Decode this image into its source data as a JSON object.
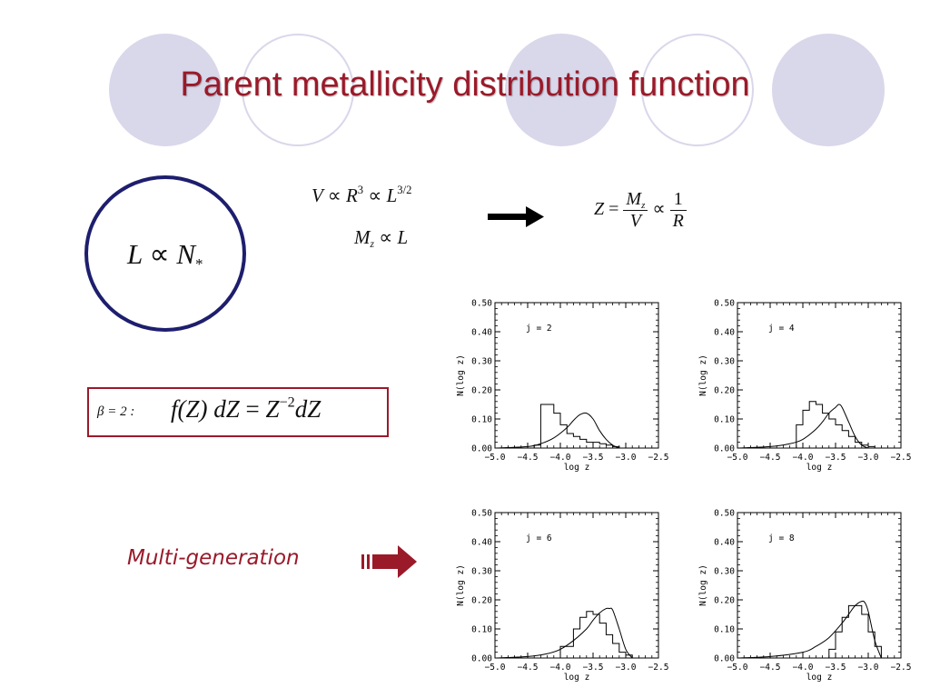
{
  "slide": {
    "title": "Parent metallicity distribution function",
    "colors": {
      "title": "#9a1a2a",
      "circle_border": "#1e1e6e",
      "box_border": "#9a1a2a",
      "decoration": "#d9d7ea"
    }
  },
  "equations": {
    "circle": {
      "lhs": "L",
      "op": "∝",
      "rhs": "N",
      "rhs_sub": "*"
    },
    "volume": {
      "v": "V",
      "op1": "∝",
      "r": "R",
      "r_exp": "3",
      "op2": "∝",
      "l": "L",
      "l_exp": "3/2"
    },
    "mass": {
      "m": "M",
      "m_sub": "z",
      "op": "∝",
      "l": "L"
    },
    "metallicity": {
      "z": "Z",
      "eq": "=",
      "num": "M",
      "num_sub": "z",
      "den": "V",
      "op": "∝",
      "num2": "1",
      "den2": "R"
    },
    "imf": {
      "prefix": "β = 2 :",
      "expr": "f(Z) dZ",
      "eq": "=",
      "rhs": "Z",
      "rhs_exp": "−2",
      "tail": "dZ"
    }
  },
  "arrows": {
    "right_arrow_icon": "right-arrow-icon",
    "multi_gen_arrow_icon": "multi-generation-arrow-icon"
  },
  "multi_generation": {
    "label": "Multi-generation"
  },
  "chart_data": [
    {
      "type": "line",
      "annotation": "j = 2",
      "xlabel": "log z",
      "ylabel": "N(log z)",
      "xlim": [
        -5.0,
        -2.5
      ],
      "ylim": [
        0.0,
        0.5
      ],
      "xticks": [
        "−5.0",
        "−4.5",
        "−4.0",
        "−3.5",
        "−3.0",
        "−2.5"
      ],
      "yticks": [
        "0.00",
        "0.10",
        "0.20",
        "0.30",
        "0.40",
        "0.50"
      ],
      "series": [
        {
          "style": "step",
          "x": [
            -5.0,
            -4.4,
            -4.3,
            -4.1,
            -4.0,
            -3.9,
            -3.8,
            -3.7,
            -3.6,
            -3.5,
            -3.4,
            -3.3,
            -3.2,
            -3.1,
            -2.5
          ],
          "y": [
            0.0,
            0.01,
            0.15,
            0.12,
            0.08,
            0.05,
            0.04,
            0.03,
            0.02,
            0.02,
            0.015,
            0.01,
            0.005,
            0.0,
            0.0
          ]
        },
        {
          "style": "smooth",
          "x": [
            -5.0,
            -4.5,
            -4.3,
            -4.1,
            -3.9,
            -3.8,
            -3.7,
            -3.6,
            -3.5,
            -3.4,
            -3.3,
            -3.2,
            -3.1
          ],
          "y": [
            0.0,
            0.005,
            0.015,
            0.035,
            0.07,
            0.095,
            0.115,
            0.12,
            0.1,
            0.06,
            0.03,
            0.01,
            0.0
          ]
        }
      ]
    },
    {
      "type": "line",
      "annotation": "j = 4",
      "xlabel": "log z",
      "ylabel": "N(log z)",
      "xlim": [
        -5.0,
        -2.5
      ],
      "ylim": [
        0.0,
        0.5
      ],
      "xticks": [
        "−5.0",
        "−4.5",
        "−4.0",
        "−3.5",
        "−3.0",
        "−2.5"
      ],
      "yticks": [
        "0.00",
        "0.10",
        "0.20",
        "0.30",
        "0.40",
        "0.50"
      ],
      "series": [
        {
          "style": "step",
          "x": [
            -5.0,
            -4.1,
            -4.0,
            -3.9,
            -3.8,
            -3.7,
            -3.6,
            -3.5,
            -3.4,
            -3.3,
            -3.2,
            -3.1,
            -3.0,
            -2.9,
            -2.5
          ],
          "y": [
            0.0,
            0.08,
            0.13,
            0.16,
            0.15,
            0.12,
            0.1,
            0.08,
            0.06,
            0.04,
            0.02,
            0.01,
            0.005,
            0.0,
            0.0
          ]
        },
        {
          "style": "smooth",
          "x": [
            -5.0,
            -4.5,
            -4.2,
            -4.0,
            -3.8,
            -3.7,
            -3.6,
            -3.5,
            -3.45,
            -3.4,
            -3.3,
            -3.2,
            -3.1,
            -3.0
          ],
          "y": [
            0.0,
            0.005,
            0.015,
            0.03,
            0.065,
            0.09,
            0.12,
            0.14,
            0.15,
            0.14,
            0.09,
            0.04,
            0.01,
            0.0
          ]
        }
      ]
    },
    {
      "type": "line",
      "annotation": "j = 6",
      "xlabel": "log z",
      "ylabel": "N(log z)",
      "xlim": [
        -5.0,
        -2.5
      ],
      "ylim": [
        0.0,
        0.5
      ],
      "xticks": [
        "−5.0",
        "−4.5",
        "−4.0",
        "−3.5",
        "−3.0",
        "−2.5"
      ],
      "yticks": [
        "0.00",
        "0.10",
        "0.20",
        "0.30",
        "0.40",
        "0.50"
      ],
      "series": [
        {
          "style": "step",
          "x": [
            -5.0,
            -4.0,
            -3.8,
            -3.7,
            -3.6,
            -3.5,
            -3.4,
            -3.3,
            -3.2,
            -3.1,
            -3.0,
            -2.9,
            -2.5
          ],
          "y": [
            0.0,
            0.04,
            0.1,
            0.14,
            0.16,
            0.15,
            0.12,
            0.08,
            0.05,
            0.02,
            0.01,
            0.0,
            0.0
          ]
        },
        {
          "style": "smooth",
          "x": [
            -5.0,
            -4.5,
            -4.2,
            -4.0,
            -3.8,
            -3.6,
            -3.5,
            -3.4,
            -3.3,
            -3.25,
            -3.2,
            -3.1,
            -3.0,
            -2.9
          ],
          "y": [
            0.0,
            0.005,
            0.015,
            0.03,
            0.06,
            0.1,
            0.13,
            0.155,
            0.17,
            0.17,
            0.165,
            0.1,
            0.03,
            0.0
          ]
        }
      ]
    },
    {
      "type": "line",
      "annotation": "j = 8",
      "xlabel": "log z",
      "ylabel": "N(log z)",
      "xlim": [
        -5.0,
        -2.5
      ],
      "ylim": [
        0.0,
        0.5
      ],
      "xticks": [
        "−5.0",
        "−4.5",
        "−4.0",
        "−3.5",
        "−3.0",
        "−2.5"
      ],
      "yticks": [
        "0.00",
        "0.10",
        "0.20",
        "0.30",
        "0.40",
        "0.50"
      ],
      "series": [
        {
          "style": "step",
          "x": [
            -5.0,
            -3.6,
            -3.5,
            -3.4,
            -3.3,
            -3.2,
            -3.1,
            -3.0,
            -2.9,
            -2.8,
            -2.5
          ],
          "y": [
            0.0,
            0.03,
            0.09,
            0.14,
            0.18,
            0.18,
            0.15,
            0.09,
            0.04,
            0.0,
            0.0
          ]
        },
        {
          "style": "smooth",
          "x": [
            -5.0,
            -4.5,
            -4.0,
            -3.8,
            -3.6,
            -3.4,
            -3.3,
            -3.2,
            -3.1,
            -3.05,
            -3.0,
            -2.9,
            -2.8
          ],
          "y": [
            0.0,
            0.005,
            0.02,
            0.04,
            0.07,
            0.12,
            0.15,
            0.18,
            0.195,
            0.19,
            0.16,
            0.06,
            0.0
          ]
        }
      ]
    }
  ]
}
